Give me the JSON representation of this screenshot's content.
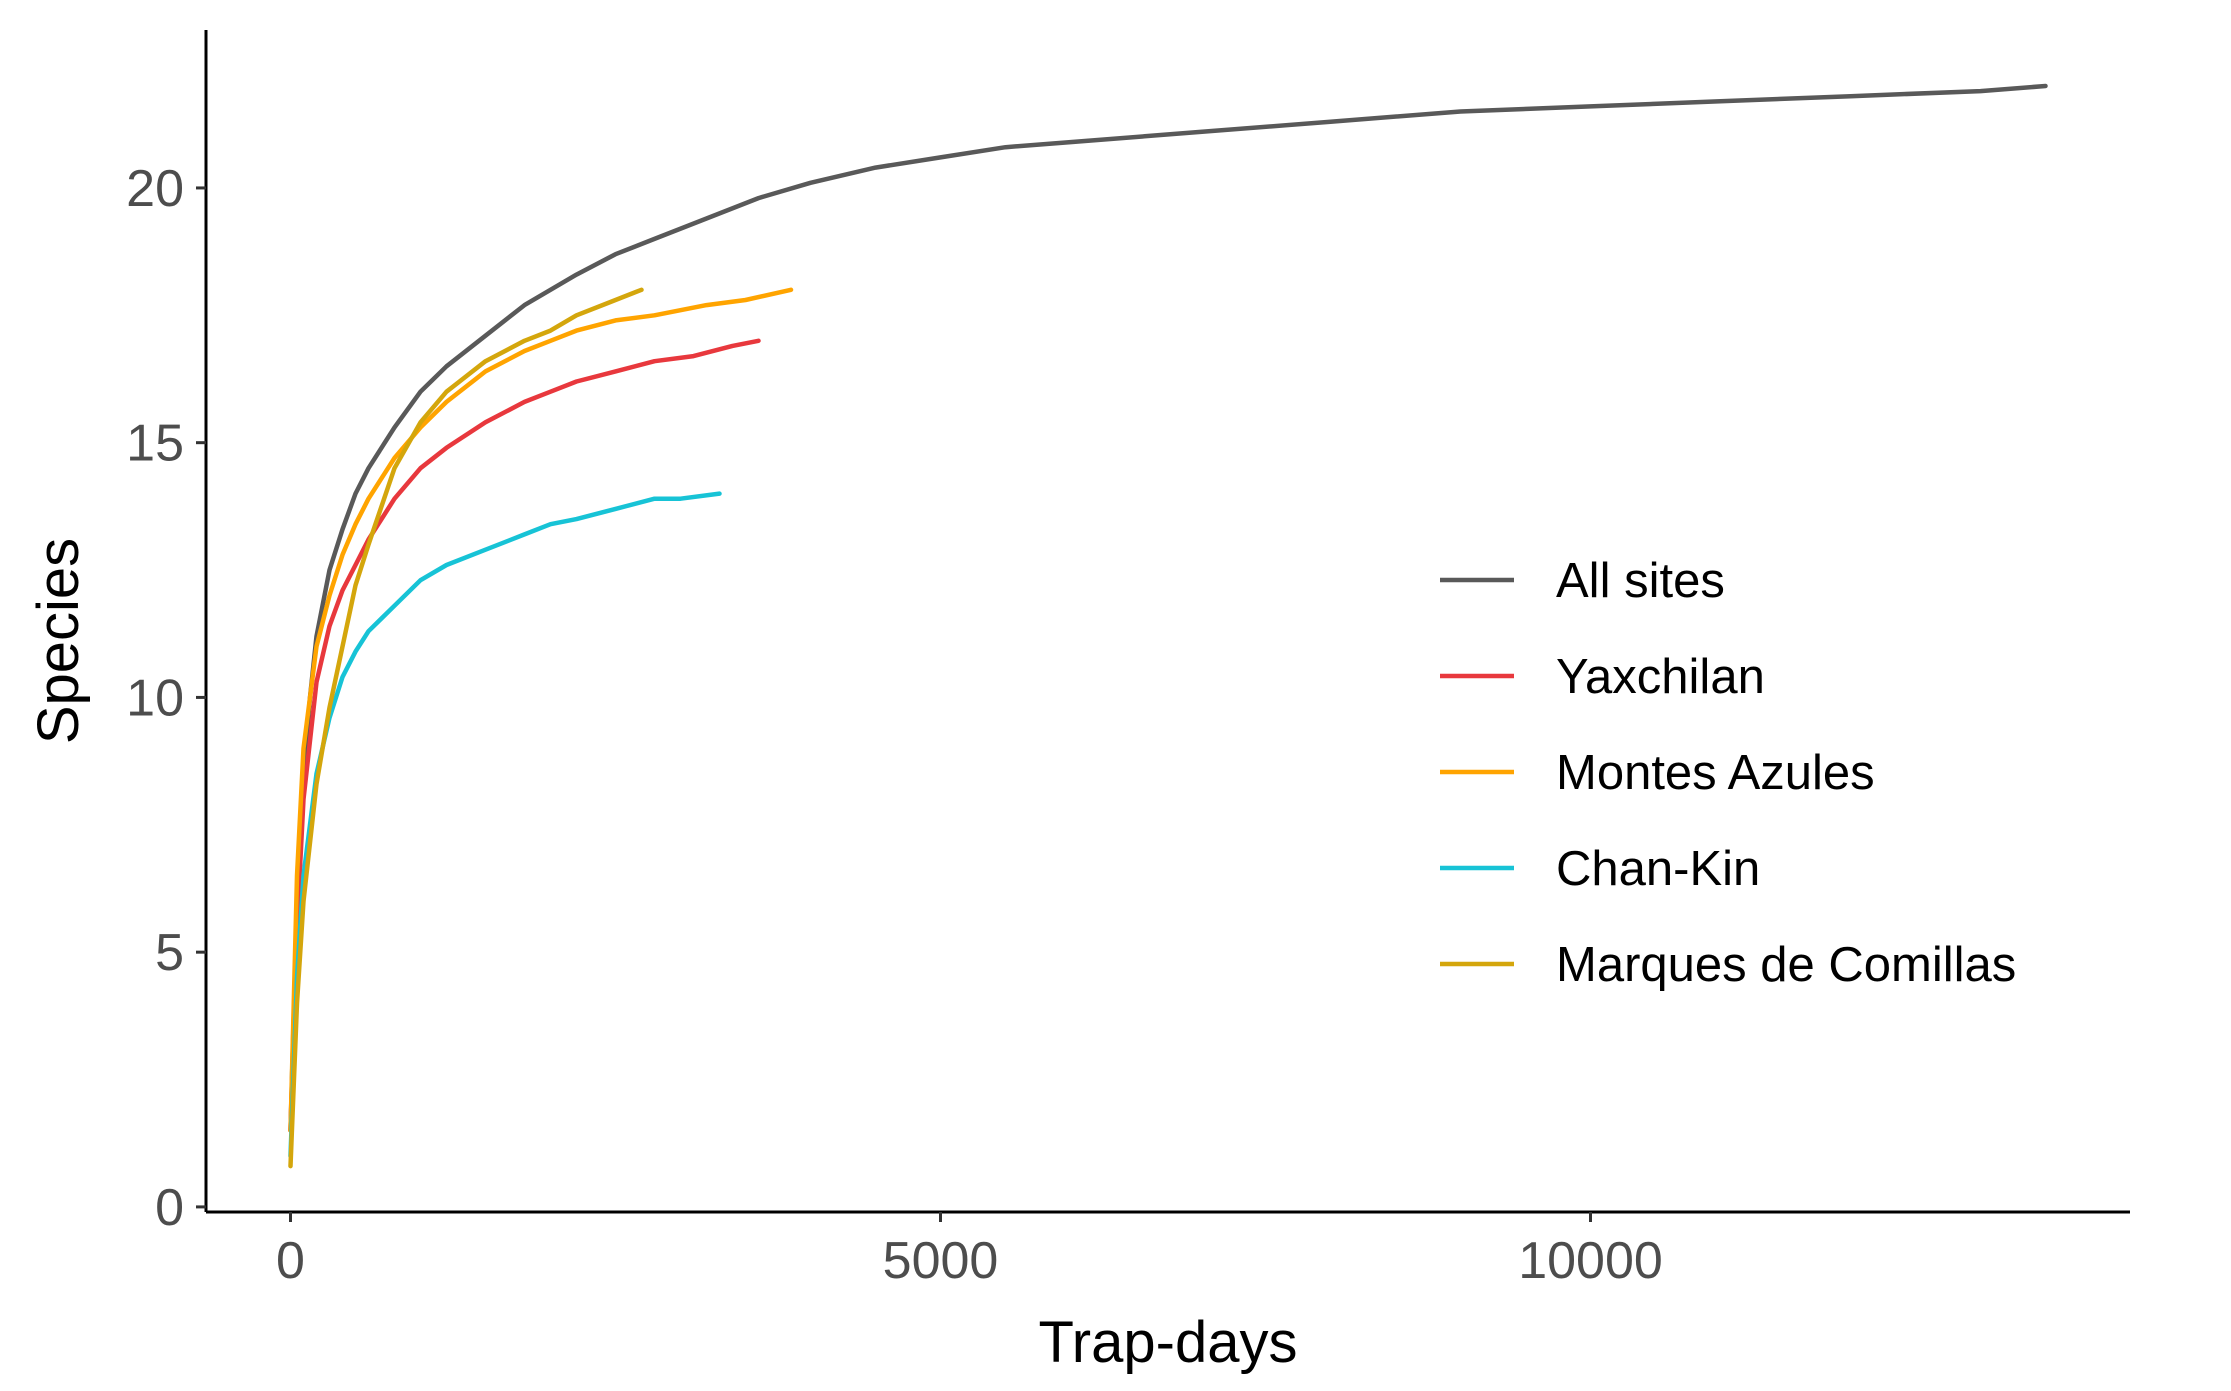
{
  "chart_data": {
    "type": "line",
    "title": "",
    "xlabel": "Trap-days",
    "ylabel": "Species",
    "xlim": [
      -650,
      14150
    ],
    "ylim": [
      -0.1,
      23.1
    ],
    "xticks": [
      0,
      5000,
      10000
    ],
    "yticks": [
      0,
      5,
      10,
      15,
      20
    ],
    "grid": false,
    "legend_position": "right",
    "series": [
      {
        "name": "All sites",
        "color": "#595959",
        "x": [
          0,
          50,
          100,
          150,
          200,
          300,
          400,
          500,
          600,
          800,
          1000,
          1200,
          1500,
          1800,
          2000,
          2200,
          2500,
          2800,
          3200,
          3600,
          4000,
          4500,
          5000,
          5500,
          6000,
          7000,
          8000,
          9000,
          10000,
          11000,
          12000,
          13000,
          13500
        ],
        "y": [
          1.5,
          6.0,
          8.5,
          10.0,
          11.2,
          12.5,
          13.3,
          14.0,
          14.5,
          15.3,
          16.0,
          16.5,
          17.1,
          17.7,
          18.0,
          18.3,
          18.7,
          19.0,
          19.4,
          19.8,
          20.1,
          20.4,
          20.6,
          20.8,
          20.9,
          21.1,
          21.3,
          21.5,
          21.6,
          21.7,
          21.8,
          21.9,
          22.0
        ]
      },
      {
        "name": "Yaxchilan",
        "color": "#e8383d",
        "x": [
          0,
          50,
          100,
          200,
          300,
          400,
          500,
          600,
          800,
          1000,
          1200,
          1500,
          1800,
          2000,
          2200,
          2500,
          2800,
          3100,
          3400,
          3600
        ],
        "y": [
          1.5,
          5.5,
          8.0,
          10.3,
          11.4,
          12.1,
          12.6,
          13.1,
          13.9,
          14.5,
          14.9,
          15.4,
          15.8,
          16.0,
          16.2,
          16.4,
          16.6,
          16.7,
          16.9,
          17.0
        ]
      },
      {
        "name": "Montes Azules",
        "color": "#ffa400",
        "x": [
          0,
          50,
          100,
          200,
          300,
          400,
          500,
          600,
          800,
          1000,
          1200,
          1500,
          1800,
          2000,
          2200,
          2500,
          2800,
          3200,
          3500,
          3850
        ],
        "y": [
          1.5,
          6.5,
          9.0,
          11.0,
          12.0,
          12.8,
          13.4,
          13.9,
          14.7,
          15.3,
          15.8,
          16.4,
          16.8,
          17.0,
          17.2,
          17.4,
          17.5,
          17.7,
          17.8,
          18.0
        ]
      },
      {
        "name": "Chan-Kin",
        "color": "#17c3d6",
        "x": [
          0,
          50,
          100,
          200,
          300,
          400,
          500,
          600,
          800,
          1000,
          1200,
          1500,
          1800,
          2000,
          2200,
          2500,
          2800,
          3000,
          3300
        ],
        "y": [
          1.0,
          4.5,
          6.5,
          8.5,
          9.6,
          10.4,
          10.9,
          11.3,
          11.8,
          12.3,
          12.6,
          12.9,
          13.2,
          13.4,
          13.5,
          13.7,
          13.9,
          13.9,
          14.0
        ]
      },
      {
        "name": "Marques de Comillas",
        "color": "#d4a60c",
        "x": [
          0,
          50,
          100,
          200,
          300,
          400,
          500,
          600,
          800,
          1000,
          1200,
          1500,
          1800,
          2000,
          2200,
          2400,
          2600,
          2700
        ],
        "y": [
          0.8,
          4.0,
          6.0,
          8.3,
          9.8,
          11.0,
          12.2,
          13.0,
          14.5,
          15.4,
          16.0,
          16.6,
          17.0,
          17.2,
          17.5,
          17.7,
          17.9,
          18.0
        ]
      }
    ]
  }
}
